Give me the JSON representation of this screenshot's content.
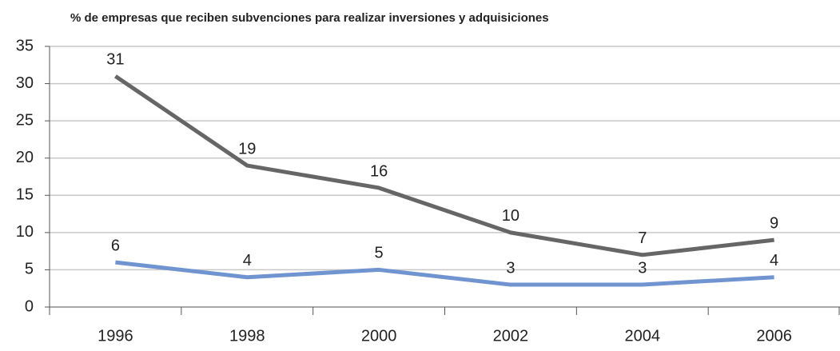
{
  "chart_data": {
    "type": "line",
    "title": "% de empresas que reciben subvenciones para realizar inversiones y adquisiciones",
    "categories": [
      "1996",
      "1998",
      "2000",
      "2002",
      "2004",
      "2006"
    ],
    "series": [
      {
        "color": "#666666",
        "values": [
          31,
          19,
          16,
          10,
          7,
          9
        ]
      },
      {
        "color": "#7094d0",
        "values": [
          6,
          4,
          5,
          3,
          3,
          4
        ]
      }
    ],
    "ylim": [
      0,
      35
    ],
    "yticks": [
      0,
      5,
      10,
      15,
      20,
      25,
      30,
      35
    ],
    "grid": true
  }
}
